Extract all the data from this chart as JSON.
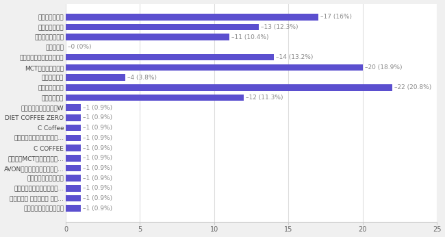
{
  "categories": [
    "フィットライフコーヒー",
    "ガルシニア ダイエット コー...",
    "ブラックコーヒーを朝飲む...",
    "スリーダウンコーヒー",
    "AVON　スタイルコントロー...",
    "コストコMCTパウダー入り...",
    "C COFFEE",
    "上記のコーヒーを購入した...",
    "C Coffee",
    "DIET COFFEE ZERO",
    "エクサライフコーヒーW",
    "シーコーヒー",
    "スリムコーヒー",
    "カフェテイン",
    "MCTバターコーヒー",
    "チャコールバターコーヒー",
    "ケトスリム",
    "ドクターコーヒー",
    "カフェリーチェ",
    "アットコーヒー"
  ],
  "values": [
    1,
    1,
    1,
    1,
    1,
    1,
    1,
    1,
    1,
    1,
    1,
    12,
    22,
    4,
    20,
    14,
    0,
    11,
    13,
    17
  ],
  "labels": [
    "1 (0.9%)",
    "1 (0.9%)",
    "1 (0.9%)",
    "1 (0.9%)",
    "1 (0.9%)",
    "1 (0.9%)",
    "1 (0.9%)",
    "1 (0.9%)",
    "1 (0.9%)",
    "1 (0.9%)",
    "1 (0.9%)",
    "12 (11.3%)",
    "22 (20.8%)",
    "4 (3.8%)",
    "20 (18.9%)",
    "14 (13.2%)",
    "0 (0%)",
    "11 (10.4%)",
    "13 (12.3%)",
    "17 (16%)"
  ],
  "bar_color": "#5B4FCF",
  "label_color": "#888888",
  "axes_background": "#ffffff",
  "figure_background": "#f0f0f0",
  "xlim": [
    0,
    25
  ],
  "xticks": [
    0,
    5,
    10,
    15,
    20,
    25
  ],
  "bar_height": 0.65,
  "figsize": [
    6.5,
    3.46
  ],
  "dpi": 100,
  "fontsize_labels": 6.5,
  "fontsize_ticks": 7,
  "fontsize_annotations": 6.5
}
